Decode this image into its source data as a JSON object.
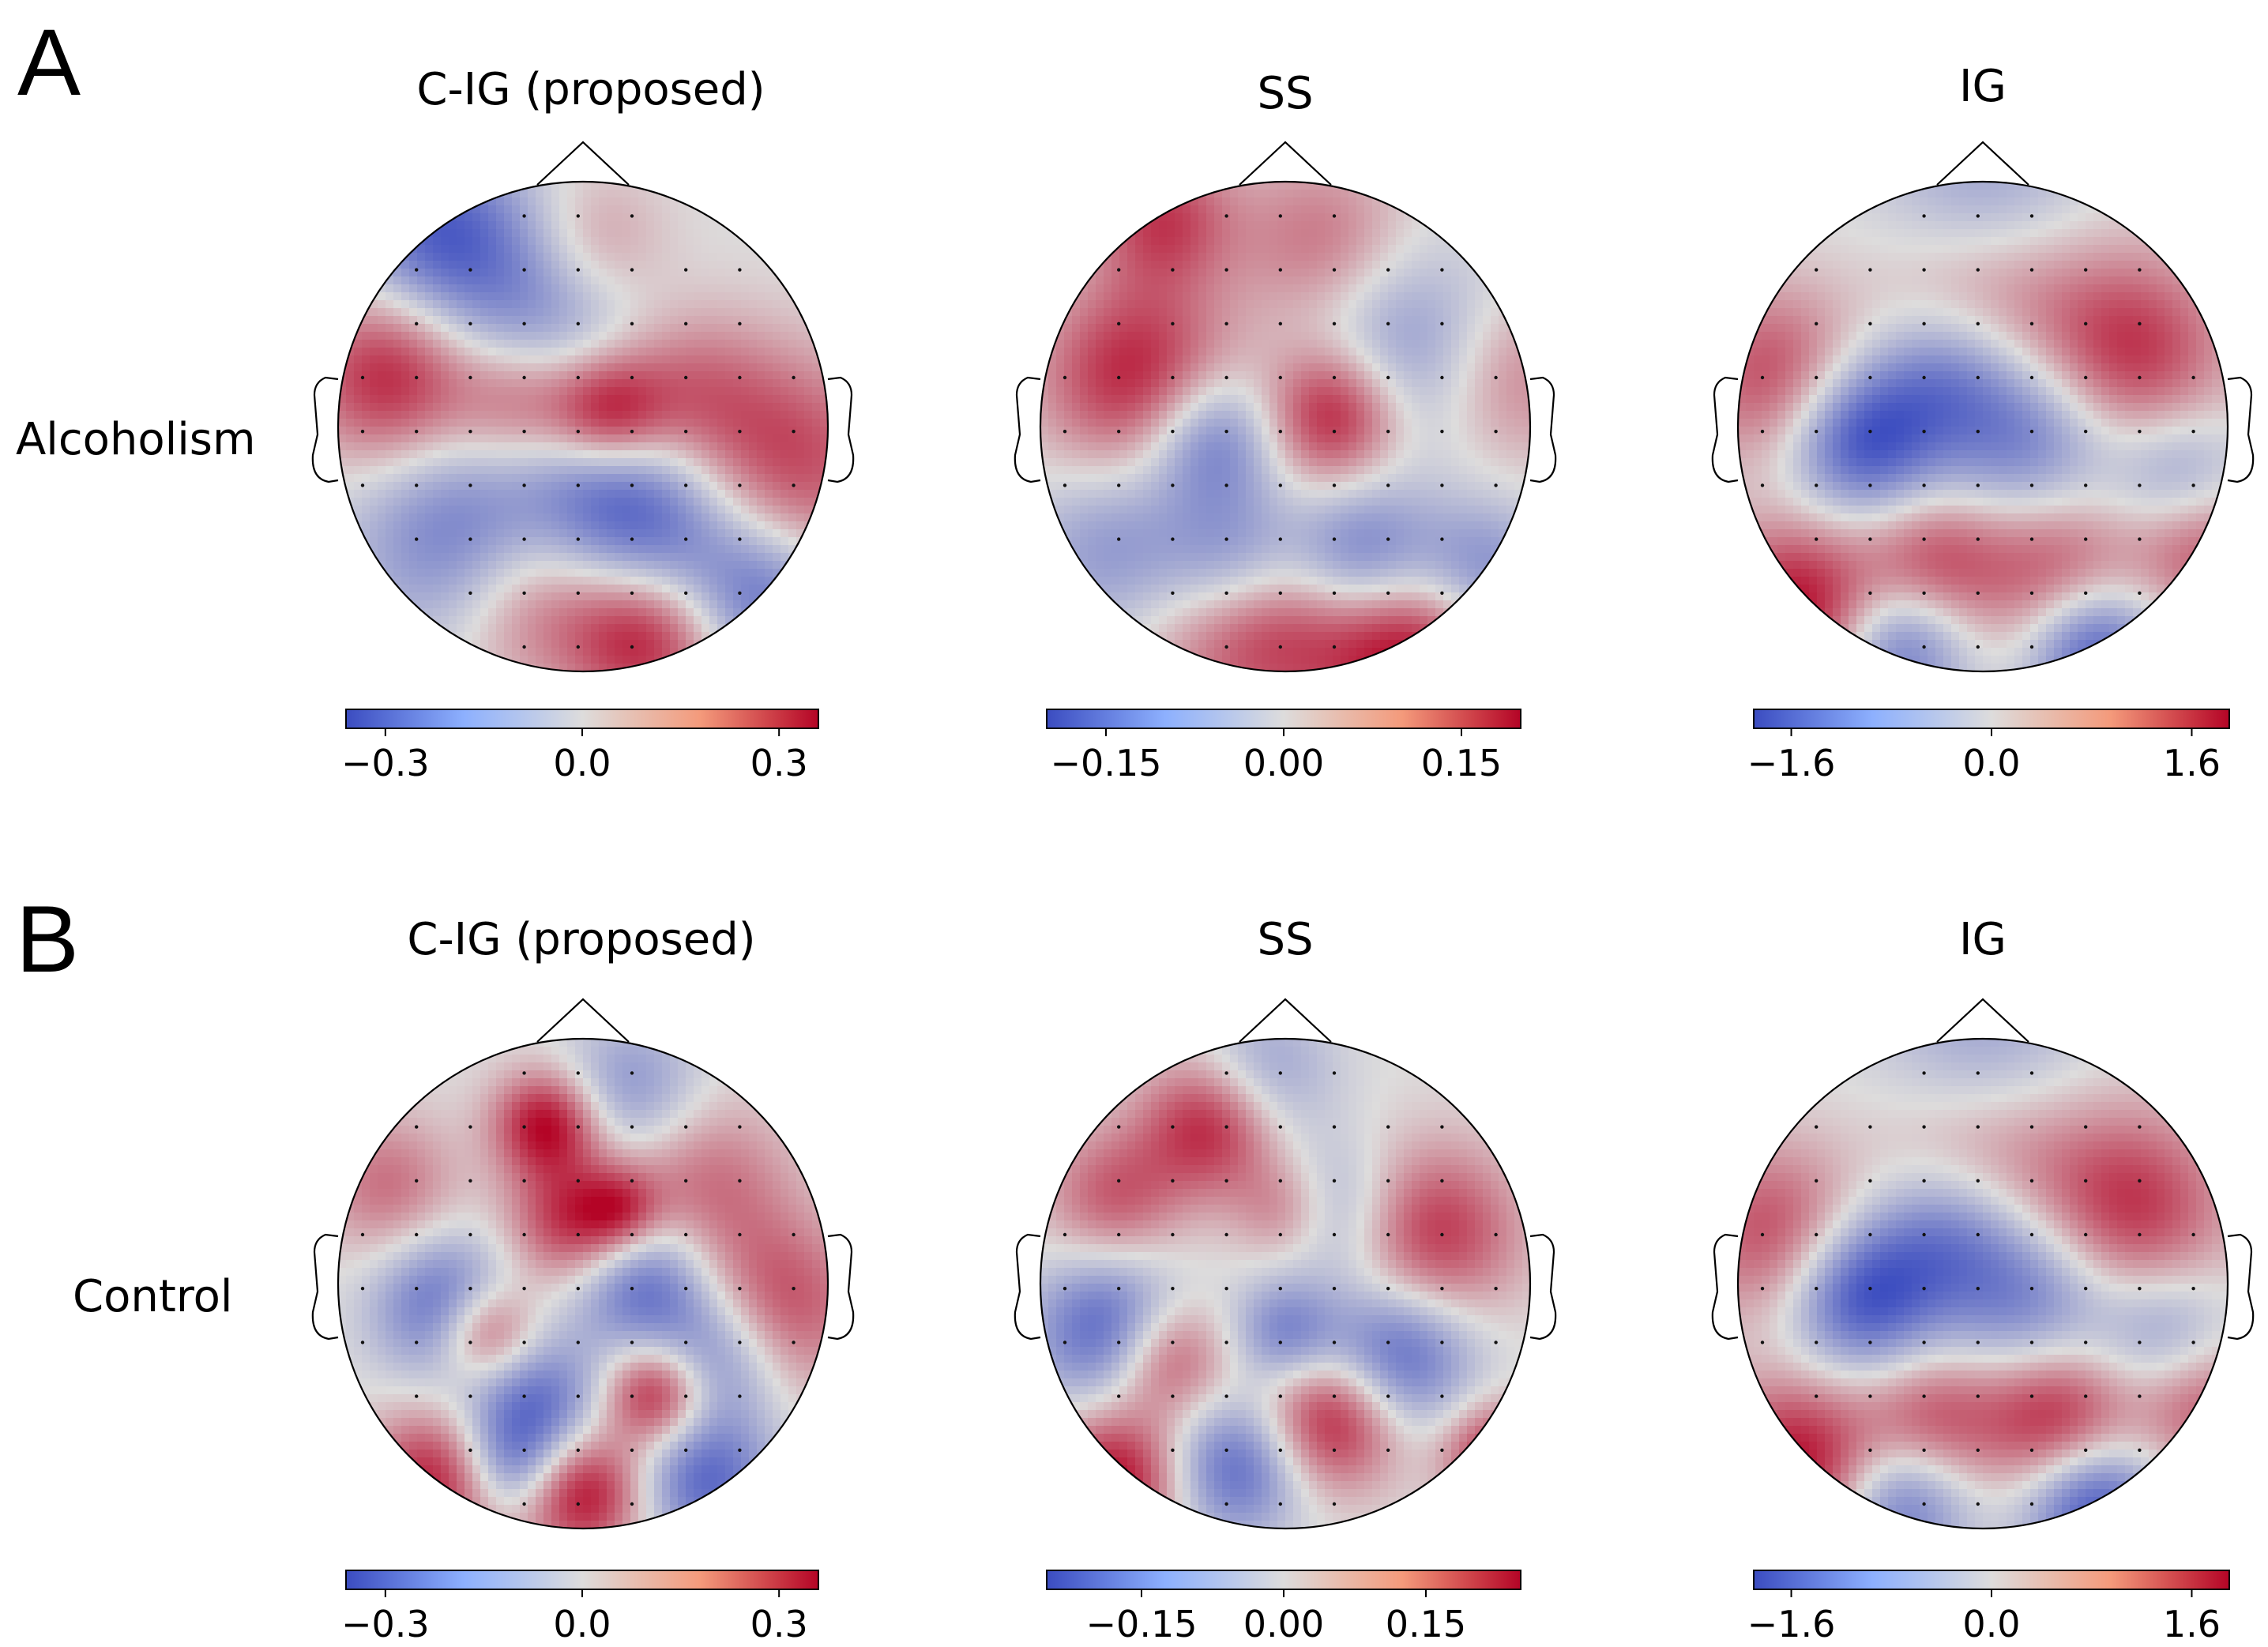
{
  "chart_data": {
    "type": "heatmap",
    "subtype": "eeg-topographic-map",
    "colormap": "coolwarm",
    "colors": {
      "low": "#3b4cc0",
      "mid": "#dddcdc",
      "high": "#b40426"
    },
    "panels": [
      {
        "letter": "A",
        "row_label": "Alcoholism",
        "maps": [
          {
            "title": "C-IG (proposed)",
            "range": [
              -0.36,
              0.36
            ],
            "ticks": [
              -0.3,
              0.0,
              0.3
            ],
            "tick_labels": [
              "−0.3",
              "0.0",
              "0.3"
            ],
            "blobs": [
              [
                -0.78,
                0.2,
                0.25,
                0.9
              ],
              [
                -0.25,
                0.1,
                0.2,
                0.7
              ],
              [
                0.1,
                0.05,
                0.17,
                1
              ],
              [
                0.4,
                0.1,
                0.25,
                0.6
              ],
              [
                0.85,
                -0.15,
                0.3,
                0.7
              ],
              [
                0.25,
                -0.85,
                0.22,
                1
              ],
              [
                -0.2,
                -0.7,
                0.25,
                0.6
              ],
              [
                0.05,
                0.75,
                0.2,
                0.4
              ],
              [
                -0.6,
                0.8,
                0.25,
                -0.8
              ],
              [
                -0.2,
                0.45,
                0.3,
                -0.6
              ],
              [
                0.3,
                -0.45,
                0.3,
                -0.8
              ],
              [
                -0.5,
                -0.45,
                0.3,
                -0.7
              ],
              [
                0.75,
                -0.7,
                0.2,
                -0.6
              ],
              [
                0.1,
                -0.15,
                0.25,
                -0.5
              ]
            ]
          },
          {
            "title": "SS",
            "range": [
              -0.2,
              0.2
            ],
            "ticks": [
              -0.15,
              0.0,
              0.15
            ],
            "tick_labels": [
              "−0.15",
              "0.00",
              "0.15"
            ],
            "blobs": [
              [
                -0.6,
                0.2,
                0.28,
                0.9
              ],
              [
                0.2,
                0.05,
                0.2,
                1
              ],
              [
                -0.1,
                -0.75,
                0.3,
                1
              ],
              [
                0.5,
                -0.9,
                0.25,
                1
              ],
              [
                0.15,
                0.75,
                0.25,
                0.5
              ],
              [
                -0.5,
                0.85,
                0.2,
                0.7
              ],
              [
                0.9,
                0.2,
                0.25,
                0.5
              ],
              [
                -0.3,
                -0.05,
                0.2,
                -0.8
              ],
              [
                -0.2,
                -0.55,
                0.22,
                -0.9
              ],
              [
                0.3,
                -0.55,
                0.22,
                -0.9
              ],
              [
                0.5,
                0.3,
                0.3,
                -0.6
              ],
              [
                -0.7,
                -0.5,
                0.25,
                -0.5
              ],
              [
                0.8,
                -0.6,
                0.2,
                -0.6
              ]
            ]
          },
          {
            "title": "IG",
            "range": [
              -1.9,
              1.9
            ],
            "ticks": [
              -1.6,
              0.0,
              1.6
            ],
            "tick_labels": [
              "−1.6",
              "0.0",
              "1.6"
            ],
            "blobs": [
              [
                -0.85,
                0.2,
                0.25,
                0.7
              ],
              [
                0.6,
                0.3,
                0.28,
                0.8
              ],
              [
                0.0,
                0.6,
                0.3,
                0.6
              ],
              [
                -0.75,
                -0.75,
                0.25,
                1
              ],
              [
                0.3,
                -0.6,
                0.25,
                0.7
              ],
              [
                -0.2,
                -0.55,
                0.2,
                0.6
              ],
              [
                0.9,
                -0.5,
                0.2,
                0.6
              ],
              [
                -0.5,
                -0.05,
                0.22,
                -1
              ],
              [
                -0.15,
                0.2,
                0.22,
                -0.6
              ],
              [
                0.2,
                -0.05,
                0.25,
                -0.7
              ],
              [
                0.0,
                0.9,
                0.3,
                -0.6
              ],
              [
                0.45,
                -0.9,
                0.2,
                -1
              ],
              [
                -0.35,
                -0.9,
                0.2,
                -0.8
              ],
              [
                0.8,
                -0.2,
                0.2,
                -0.5
              ]
            ]
          }
        ]
      },
      {
        "letter": "B",
        "row_label": "Control",
        "maps": [
          {
            "title": "C-IG (proposed)",
            "range": [
              -0.36,
              0.36
            ],
            "ticks": [
              -0.3,
              0.0,
              0.3
            ],
            "tick_labels": [
              "−0.3",
              "0.0",
              "0.3"
            ],
            "blobs": [
              [
                -0.15,
                0.65,
                0.15,
                1
              ],
              [
                -0.05,
                0.25,
                0.18,
                0.8
              ],
              [
                -0.4,
                -0.2,
                0.15,
                1
              ],
              [
                0.3,
                -0.45,
                0.15,
                1
              ],
              [
                -0.6,
                -0.8,
                0.2,
                0.9
              ],
              [
                0.0,
                -0.85,
                0.18,
                1
              ],
              [
                0.8,
                -0.1,
                0.25,
                0.7
              ],
              [
                -0.8,
                0.4,
                0.2,
                0.5
              ],
              [
                0.5,
                0.4,
                0.25,
                0.5
              ],
              [
                0.15,
                0.3,
                0.12,
                0.6
              ],
              [
                -0.55,
                -0.1,
                0.2,
                -0.9
              ],
              [
                0.25,
                0.0,
                0.2,
                -0.8
              ],
              [
                0.55,
                -0.3,
                0.2,
                -0.7
              ],
              [
                -0.2,
                -0.5,
                0.2,
                -0.8
              ],
              [
                0.5,
                -0.8,
                0.2,
                -0.8
              ],
              [
                0.2,
                0.8,
                0.2,
                -0.5
              ],
              [
                -0.3,
                -0.75,
                0.15,
                -0.6
              ]
            ]
          },
          {
            "title": "SS",
            "range": [
              -0.25,
              0.25
            ],
            "ticks": [
              -0.15,
              0.0,
              0.15
            ],
            "tick_labels": [
              "−0.15",
              "0.00",
              "0.15"
            ],
            "blobs": [
              [
                -0.3,
                0.65,
                0.2,
                0.9
              ],
              [
                -0.7,
                0.35,
                0.2,
                0.6
              ],
              [
                0.6,
                0.2,
                0.25,
                0.8
              ],
              [
                0.2,
                -0.55,
                0.2,
                1
              ],
              [
                -0.5,
                -0.3,
                0.18,
                0.9
              ],
              [
                -0.7,
                -0.8,
                0.2,
                1
              ],
              [
                0.85,
                -0.7,
                0.15,
                0.8
              ],
              [
                0.0,
                0.3,
                0.15,
                0.5
              ],
              [
                -0.7,
                -0.2,
                0.22,
                -1
              ],
              [
                -0.2,
                -0.75,
                0.2,
                -0.8
              ],
              [
                0.45,
                -0.3,
                0.22,
                -0.9
              ],
              [
                0.2,
                0.3,
                0.2,
                -0.5
              ],
              [
                0.0,
                -0.2,
                0.15,
                -0.6
              ],
              [
                -0.1,
                0.85,
                0.2,
                -0.5
              ]
            ]
          },
          {
            "title": "IG",
            "range": [
              -1.9,
              1.9
            ],
            "ticks": [
              -1.6,
              0.0,
              1.6
            ],
            "tick_labels": [
              "−1.6",
              "0.0",
              "1.6"
            ],
            "blobs": [
              [
                -0.85,
                0.2,
                0.25,
                0.7
              ],
              [
                0.6,
                0.3,
                0.28,
                0.8
              ],
              [
                0.0,
                0.6,
                0.3,
                0.6
              ],
              [
                -0.75,
                -0.75,
                0.25,
                1
              ],
              [
                0.3,
                -0.55,
                0.22,
                0.9
              ],
              [
                -0.2,
                -0.55,
                0.2,
                0.6
              ],
              [
                0.9,
                -0.5,
                0.2,
                0.6
              ],
              [
                -0.5,
                -0.05,
                0.22,
                -1
              ],
              [
                -0.15,
                0.2,
                0.22,
                -0.6
              ],
              [
                0.2,
                -0.05,
                0.25,
                -0.7
              ],
              [
                0.0,
                0.9,
                0.3,
                -0.6
              ],
              [
                0.45,
                -0.9,
                0.2,
                -1
              ],
              [
                -0.35,
                -0.9,
                0.2,
                -0.8
              ],
              [
                0.75,
                -0.2,
                0.2,
                -0.5
              ]
            ]
          }
        ]
      }
    ]
  }
}
